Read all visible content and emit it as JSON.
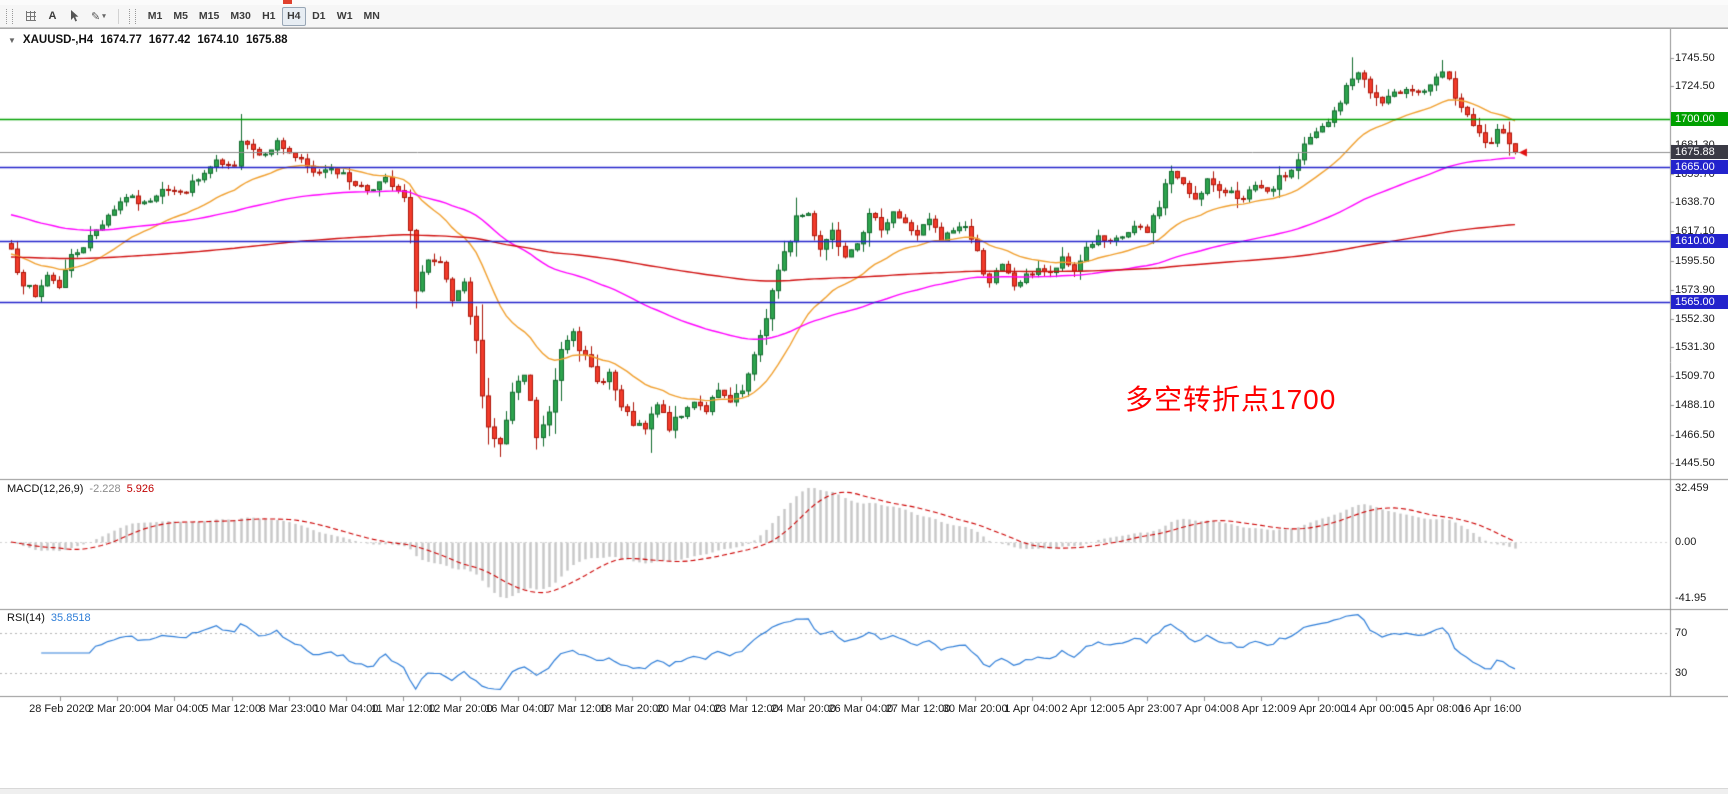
{
  "toolbar": {
    "tools": [
      {
        "name": "chart-grid",
        "label": ""
      },
      {
        "name": "text-label",
        "label": "A"
      },
      {
        "name": "cursor",
        "label": ""
      },
      {
        "name": "draw-dropdown",
        "label": "✎"
      }
    ],
    "timeframes": [
      {
        "label": "M1",
        "selected": false
      },
      {
        "label": "M5",
        "selected": false
      },
      {
        "label": "M15",
        "selected": false
      },
      {
        "label": "M30",
        "selected": false
      },
      {
        "label": "H1",
        "selected": false
      },
      {
        "label": "H4",
        "selected": true
      },
      {
        "label": "D1",
        "selected": false
      },
      {
        "label": "W1",
        "selected": false
      },
      {
        "label": "MN",
        "selected": false
      }
    ]
  },
  "chart": {
    "dropdown_glyph": "▼",
    "symbol": "XAUUSD-,H4",
    "open": "1674.77",
    "high": "1677.42",
    "low": "1674.10",
    "close": "1675.88",
    "current_price": 1675.88,
    "current_badge": {
      "label": "1675.88",
      "bg": "#3a3a45"
    },
    "annotation": {
      "text": "多空转折点1700",
      "color": "#FF0000"
    },
    "hlines": [
      {
        "price": 1700.0,
        "label": "1700.00",
        "color": "#00A000"
      },
      {
        "price": 1665.0,
        "label": "1665.00",
        "color": "#2323CC"
      },
      {
        "price": 1610.0,
        "label": "1610.00",
        "color": "#2323CC"
      },
      {
        "price": 1565.0,
        "label": "1565.00",
        "color": "#2323CC"
      }
    ],
    "price_axis_labels": [
      {
        "value": 1745.5,
        "label": "1745.50"
      },
      {
        "value": 1724.5,
        "label": "1724.50"
      },
      {
        "value": 1681.3,
        "label": "1681.30"
      },
      {
        "value": 1659.7,
        "label": "1659.70"
      },
      {
        "value": 1638.7,
        "label": "1638.70"
      },
      {
        "value": 1617.1,
        "label": "1617.10"
      },
      {
        "value": 1595.5,
        "label": "1595.50"
      },
      {
        "value": 1573.9,
        "label": "1573.90"
      },
      {
        "value": 1552.3,
        "label": "1552.30"
      },
      {
        "value": 1531.3,
        "label": "1531.30"
      },
      {
        "value": 1509.7,
        "label": "1509.70"
      },
      {
        "value": 1488.1,
        "label": "1488.10"
      },
      {
        "value": 1466.5,
        "label": "1466.50"
      },
      {
        "value": 1445.5,
        "label": "1445.50"
      }
    ]
  },
  "macd": {
    "name": "MACD(12,26,9)",
    "value_hist": "-2.228",
    "value_signal": "5.926",
    "axis_labels": [
      {
        "value": 32.459,
        "label": "32.459"
      },
      {
        "value": 0,
        "label": "0.00"
      },
      {
        "value": -41.95,
        "label": "-41.95"
      }
    ]
  },
  "rsi": {
    "name": "RSI(14)",
    "value": "35.8518",
    "axis_labels": [
      {
        "value": 70,
        "label": "70"
      },
      {
        "value": 30,
        "label": "30"
      }
    ]
  },
  "time_axis": [
    "28 Feb 2020",
    "2 Mar 20:00",
    "4 Mar 04:00",
    "5 Mar 12:00",
    "8 Mar 23:00",
    "10 Mar 04:00",
    "11 Mar 12:00",
    "12 Mar 20:00",
    "16 Mar 04:00",
    "17 Mar 12:00",
    "18 Mar 20:00",
    "20 Mar 04:00",
    "23 Mar 12:00",
    "24 Mar 20:00",
    "26 Mar 04:00",
    "27 Mar 12:00",
    "30 Mar 20:00",
    "1 Apr 04:00",
    "2 Apr 12:00",
    "5 Apr 23:00",
    "7 Apr 04:00",
    "8 Apr 12:00",
    "9 Apr 20:00",
    "14 Apr 00:00",
    "15 Apr 08:00",
    "16 Apr 16:00"
  ],
  "chart_data": {
    "type": "candlestick",
    "title": "XAUUSD H4",
    "ylim": [
      1445.5,
      1745.5
    ],
    "grid": false,
    "candles": {
      "count": 250,
      "noise": 1.9,
      "last_close": 1675.88,
      "up_color": "#2EA44E",
      "up_border": "#116B2D",
      "down_color": "#F23B2B",
      "down_border": "#AD1408",
      "close_keypoints": [
        [
          0,
          1604
        ],
        [
          2,
          1580
        ],
        [
          4,
          1568
        ],
        [
          6,
          1585
        ],
        [
          8,
          1577
        ],
        [
          10,
          1598
        ],
        [
          13,
          1612
        ],
        [
          16,
          1630
        ],
        [
          19,
          1643
        ],
        [
          22,
          1637
        ],
        [
          25,
          1650
        ],
        [
          28,
          1645
        ],
        [
          31,
          1655
        ],
        [
          34,
          1668
        ],
        [
          37,
          1662
        ],
        [
          38,
          1688
        ],
        [
          41,
          1674
        ],
        [
          44,
          1683
        ],
        [
          47,
          1672
        ],
        [
          50,
          1660
        ],
        [
          53,
          1665
        ],
        [
          56,
          1655
        ],
        [
          59,
          1648
        ],
        [
          62,
          1655
        ],
        [
          65,
          1640
        ],
        [
          66,
          1612
        ],
        [
          67,
          1578
        ],
        [
          69,
          1595
        ],
        [
          71,
          1590
        ],
        [
          73,
          1565
        ],
        [
          75,
          1575
        ],
        [
          77,
          1532
        ],
        [
          79,
          1472
        ],
        [
          81,
          1458
        ],
        [
          83,
          1495
        ],
        [
          85,
          1510
        ],
        [
          87,
          1465
        ],
        [
          89,
          1480
        ],
        [
          91,
          1532
        ],
        [
          93,
          1545
        ],
        [
          95,
          1522
        ],
        [
          97,
          1505
        ],
        [
          99,
          1512
        ],
        [
          101,
          1485
        ],
        [
          103,
          1475
        ],
        [
          105,
          1470
        ],
        [
          107,
          1488
        ],
        [
          109,
          1472
        ],
        [
          111,
          1480
        ],
        [
          113,
          1492
        ],
        [
          115,
          1485
        ],
        [
          117,
          1498
        ],
        [
          119,
          1490
        ],
        [
          121,
          1498
        ],
        [
          123,
          1520
        ],
        [
          124,
          1540
        ],
        [
          126,
          1572
        ],
        [
          128,
          1598
        ],
        [
          130,
          1628
        ],
        [
          132,
          1630
        ],
        [
          134,
          1605
        ],
        [
          136,
          1618
        ],
        [
          138,
          1600
        ],
        [
          140,
          1612
        ],
        [
          142,
          1628
        ],
        [
          144,
          1620
        ],
        [
          146,
          1632
        ],
        [
          148,
          1622
        ],
        [
          150,
          1615
        ],
        [
          152,
          1625
        ],
        [
          154,
          1610
        ],
        [
          156,
          1618
        ],
        [
          158,
          1622
        ],
        [
          160,
          1600
        ],
        [
          162,
          1580
        ],
        [
          164,
          1591
        ],
        [
          166,
          1577
        ],
        [
          168,
          1583
        ],
        [
          170,
          1590
        ],
        [
          172,
          1585
        ],
        [
          174,
          1596
        ],
        [
          176,
          1588
        ],
        [
          178,
          1605
        ],
        [
          180,
          1612
        ],
        [
          182,
          1608
        ],
        [
          184,
          1613
        ],
        [
          186,
          1620
        ],
        [
          188,
          1616
        ],
        [
          190,
          1638
        ],
        [
          192,
          1662
        ],
        [
          194,
          1650
        ],
        [
          196,
          1642
        ],
        [
          198,
          1655
        ],
        [
          200,
          1645
        ],
        [
          202,
          1648
        ],
        [
          204,
          1640
        ],
        [
          206,
          1650
        ],
        [
          208,
          1645
        ],
        [
          210,
          1655
        ],
        [
          212,
          1662
        ],
        [
          214,
          1680
        ],
        [
          216,
          1690
        ],
        [
          218,
          1697
        ],
        [
          220,
          1714
        ],
        [
          222,
          1730
        ],
        [
          223,
          1736
        ],
        [
          225,
          1720
        ],
        [
          227,
          1712
        ],
        [
          229,
          1718
        ],
        [
          231,
          1724
        ],
        [
          233,
          1720
        ],
        [
          235,
          1723
        ],
        [
          237,
          1735
        ],
        [
          239,
          1718
        ],
        [
          241,
          1700
        ],
        [
          243,
          1688
        ],
        [
          245,
          1680
        ],
        [
          246,
          1690
        ],
        [
          248,
          1686
        ],
        [
          249,
          1675.88
        ]
      ],
      "spikes": [
        {
          "i": 38,
          "high": 1704
        },
        {
          "i": 67,
          "low": 1560
        },
        {
          "i": 81,
          "low": 1450
        },
        {
          "i": 106,
          "low": 1453
        },
        {
          "i": 222,
          "high": 1746
        },
        {
          "i": 237,
          "high": 1744
        }
      ]
    },
    "moving_averages": [
      {
        "name": "MA-fast",
        "period": 22,
        "init": 1600,
        "color": "#F0A030"
      },
      {
        "name": "MA-medium",
        "period": 80,
        "init": 1630,
        "color": "#FF00FF"
      },
      {
        "name": "MA-slow",
        "period": 300,
        "init": 1598,
        "color": "#D01010"
      }
    ],
    "macd": {
      "fast": 12,
      "slow": 26,
      "signal": 9,
      "scale_max": 32.459,
      "scale_min": -41.95,
      "current_histogram": -2.228,
      "current_signal": 5.926,
      "histogram_color": "#C6C6C6",
      "signal_color": "#CC0000"
    },
    "rsi": {
      "period": 14,
      "current": 35.8518,
      "line_color": "#2F7ED8",
      "levels": [
        70,
        30
      ]
    },
    "hlines": [
      1700,
      1665,
      1610,
      1565
    ]
  }
}
